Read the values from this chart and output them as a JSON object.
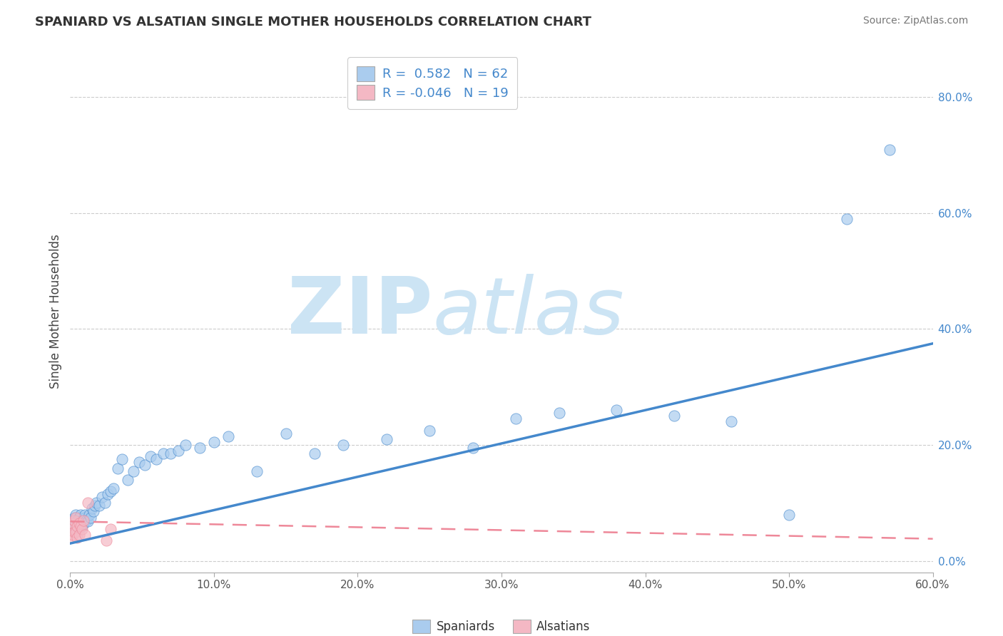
{
  "title": "SPANIARD VS ALSATIAN SINGLE MOTHER HOUSEHOLDS CORRELATION CHART",
  "source_text": "Source: ZipAtlas.com",
  "ylabel": "Single Mother Households",
  "xlim": [
    0.0,
    0.6
  ],
  "ylim": [
    -0.02,
    0.88
  ],
  "xticks": [
    0.0,
    0.1,
    0.2,
    0.3,
    0.4,
    0.5,
    0.6
  ],
  "xticklabels": [
    "0.0%",
    "10.0%",
    "20.0%",
    "30.0%",
    "40.0%",
    "50.0%",
    "60.0%"
  ],
  "yticks": [
    0.0,
    0.2,
    0.4,
    0.6,
    0.8
  ],
  "yticklabels": [
    "0.0%",
    "20.0%",
    "40.0%",
    "60.0%",
    "80.0%"
  ],
  "spaniard_R": 0.582,
  "spaniard_N": 62,
  "alsatian_R": -0.046,
  "alsatian_N": 19,
  "spaniard_color": "#aaccee",
  "alsatian_color": "#f4b8c4",
  "spaniard_line_color": "#4488cc",
  "alsatian_line_color": "#ee8899",
  "watermark_text": "ZIPatlas",
  "watermark_color": "#cce4f4",
  "legend_label_spaniards": "Spaniards",
  "legend_label_alsatians": "Alsatians",
  "spaniard_x": [
    0.001,
    0.002,
    0.002,
    0.003,
    0.003,
    0.004,
    0.004,
    0.005,
    0.005,
    0.006,
    0.006,
    0.007,
    0.007,
    0.008,
    0.008,
    0.009,
    0.01,
    0.01,
    0.011,
    0.012,
    0.013,
    0.014,
    0.015,
    0.016,
    0.017,
    0.018,
    0.02,
    0.022,
    0.024,
    0.026,
    0.028,
    0.03,
    0.033,
    0.036,
    0.04,
    0.044,
    0.048,
    0.052,
    0.056,
    0.06,
    0.065,
    0.07,
    0.075,
    0.08,
    0.09,
    0.1,
    0.11,
    0.13,
    0.15,
    0.17,
    0.19,
    0.22,
    0.25,
    0.28,
    0.31,
    0.34,
    0.38,
    0.42,
    0.46,
    0.5,
    0.54,
    0.57
  ],
  "spaniard_y": [
    0.06,
    0.055,
    0.07,
    0.06,
    0.075,
    0.065,
    0.08,
    0.055,
    0.07,
    0.06,
    0.075,
    0.065,
    0.08,
    0.06,
    0.07,
    0.065,
    0.075,
    0.08,
    0.07,
    0.068,
    0.08,
    0.075,
    0.09,
    0.085,
    0.095,
    0.1,
    0.095,
    0.11,
    0.1,
    0.115,
    0.12,
    0.125,
    0.16,
    0.175,
    0.14,
    0.155,
    0.17,
    0.165,
    0.18,
    0.175,
    0.185,
    0.185,
    0.19,
    0.2,
    0.195,
    0.205,
    0.215,
    0.155,
    0.22,
    0.185,
    0.2,
    0.21,
    0.225,
    0.195,
    0.245,
    0.255,
    0.26,
    0.25,
    0.24,
    0.08,
    0.59,
    0.71
  ],
  "alsatian_x": [
    0.001,
    0.001,
    0.002,
    0.002,
    0.003,
    0.003,
    0.004,
    0.004,
    0.005,
    0.005,
    0.006,
    0.006,
    0.007,
    0.008,
    0.009,
    0.01,
    0.012,
    0.025,
    0.028
  ],
  "alsatian_y": [
    0.055,
    0.04,
    0.065,
    0.045,
    0.07,
    0.05,
    0.075,
    0.05,
    0.06,
    0.04,
    0.065,
    0.045,
    0.06,
    0.055,
    0.07,
    0.045,
    0.1,
    0.035,
    0.055
  ],
  "spaniard_trend_x": [
    0.0,
    0.6
  ],
  "spaniard_trend_y": [
    0.03,
    0.375
  ],
  "alsatian_trend_x": [
    0.0,
    0.6
  ],
  "alsatian_trend_y": [
    0.068,
    0.038
  ]
}
